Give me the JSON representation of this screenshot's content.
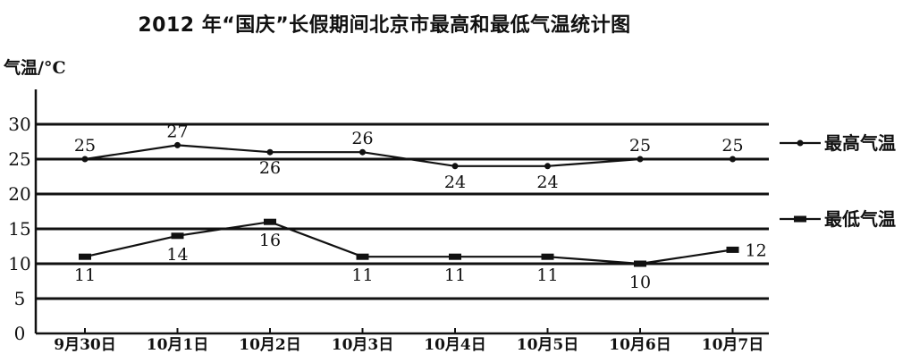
{
  "chart_data": {
    "type": "line",
    "title": "2012 年“国庆”长假期间北京市最高和最低气温统计图",
    "ylabel": "气温/°C",
    "xlabel": "",
    "categories": [
      "9月30日",
      "10月1日",
      "10月2日",
      "10月3日",
      "10月4日",
      "10月5日",
      "10月6日",
      "10月7日"
    ],
    "yticks": [
      0,
      5,
      10,
      15,
      20,
      25,
      30
    ],
    "ylim": [
      0,
      30
    ],
    "grid": true,
    "legend_position": "right",
    "series": [
      {
        "name": "最高气温",
        "values": [
          25,
          27,
          26,
          26,
          24,
          24,
          25,
          25
        ],
        "marker": "dot",
        "labels_position": "above-except-dips"
      },
      {
        "name": "最低气温",
        "values": [
          11,
          14,
          16,
          11,
          11,
          11,
          10,
          12
        ],
        "marker": "bar",
        "labels_position": "below-except-last"
      }
    ]
  }
}
